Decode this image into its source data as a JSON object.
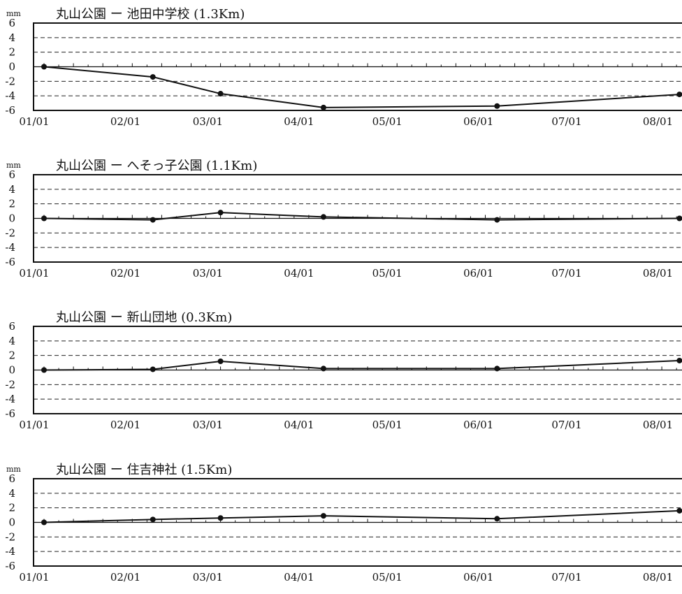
{
  "chart_data": [
    {
      "type": "line",
      "title": "丸山公園 ー 池田中学校 (1.3Km)",
      "unit": "mm",
      "ylim": [
        -6,
        6
      ],
      "yticks": [
        "6",
        "4",
        "2",
        "0",
        "-2",
        "-4",
        "-6"
      ],
      "xticks": [
        "01/01",
        "02/01",
        "03/01",
        "04/01",
        "05/01",
        "06/01",
        "07/01",
        "08/01"
      ],
      "grid": "dashed horizontal",
      "series": [
        {
          "points": [
            {
              "x": "01/01",
              "y": 0
            },
            {
              "x": "02/07",
              "y": -1.4
            },
            {
              "x": "03/02",
              "y": -3.7
            },
            {
              "x": "04/06",
              "y": -5.6
            },
            {
              "x": "06/04",
              "y": -5.4
            },
            {
              "x": "08/05",
              "y": -3.8
            }
          ]
        }
      ]
    },
    {
      "type": "line",
      "title": "丸山公園 ー へそっ子公園 (1.1Km)",
      "unit": "mm",
      "ylim": [
        -6,
        6
      ],
      "yticks": [
        "6",
        "4",
        "2",
        "0",
        "-2",
        "-4",
        "-6"
      ],
      "xticks": [
        "01/01",
        "02/01",
        "03/01",
        "04/01",
        "05/01",
        "06/01",
        "07/01",
        "08/01"
      ],
      "grid": "dashed horizontal",
      "series": [
        {
          "points": [
            {
              "x": "01/01",
              "y": 0
            },
            {
              "x": "02/07",
              "y": -0.2
            },
            {
              "x": "03/02",
              "y": 0.8
            },
            {
              "x": "04/06",
              "y": 0.2
            },
            {
              "x": "06/04",
              "y": -0.2
            },
            {
              "x": "08/05",
              "y": 0
            }
          ]
        }
      ]
    },
    {
      "type": "line",
      "title": "丸山公園 ー 新山団地 (0.3Km)",
      "unit": "",
      "ylim": [
        -6,
        6
      ],
      "yticks": [
        "6",
        "4",
        "2",
        "0",
        "-2",
        "-4",
        "-6"
      ],
      "xticks": [
        "01/01",
        "02/01",
        "03/01",
        "04/01",
        "05/01",
        "06/01",
        "07/01",
        "08/01"
      ],
      "grid": "dashed horizontal",
      "series": [
        {
          "points": [
            {
              "x": "01/01",
              "y": 0
            },
            {
              "x": "02/07",
              "y": 0.1
            },
            {
              "x": "03/02",
              "y": 1.2
            },
            {
              "x": "04/06",
              "y": 0.2
            },
            {
              "x": "06/04",
              "y": 0.2
            },
            {
              "x": "08/05",
              "y": 1.3
            }
          ]
        }
      ]
    },
    {
      "type": "line",
      "title": "丸山公園 ー 住吉神社 (1.5Km)",
      "unit": "mm",
      "ylim": [
        -6,
        6
      ],
      "yticks": [
        "6",
        "4",
        "2",
        "0",
        "-2",
        "-4",
        "-6"
      ],
      "xticks": [
        "01/01",
        "02/01",
        "03/01",
        "04/01",
        "05/01",
        "06/01",
        "07/01",
        "08/01"
      ],
      "grid": "dashed horizontal",
      "series": [
        {
          "points": [
            {
              "x": "01/01",
              "y": 0
            },
            {
              "x": "02/07",
              "y": 0.4
            },
            {
              "x": "03/02",
              "y": 0.6
            },
            {
              "x": "04/06",
              "y": 0.9
            },
            {
              "x": "06/04",
              "y": 0.5
            },
            {
              "x": "08/05",
              "y": 1.6
            }
          ]
        }
      ]
    }
  ]
}
